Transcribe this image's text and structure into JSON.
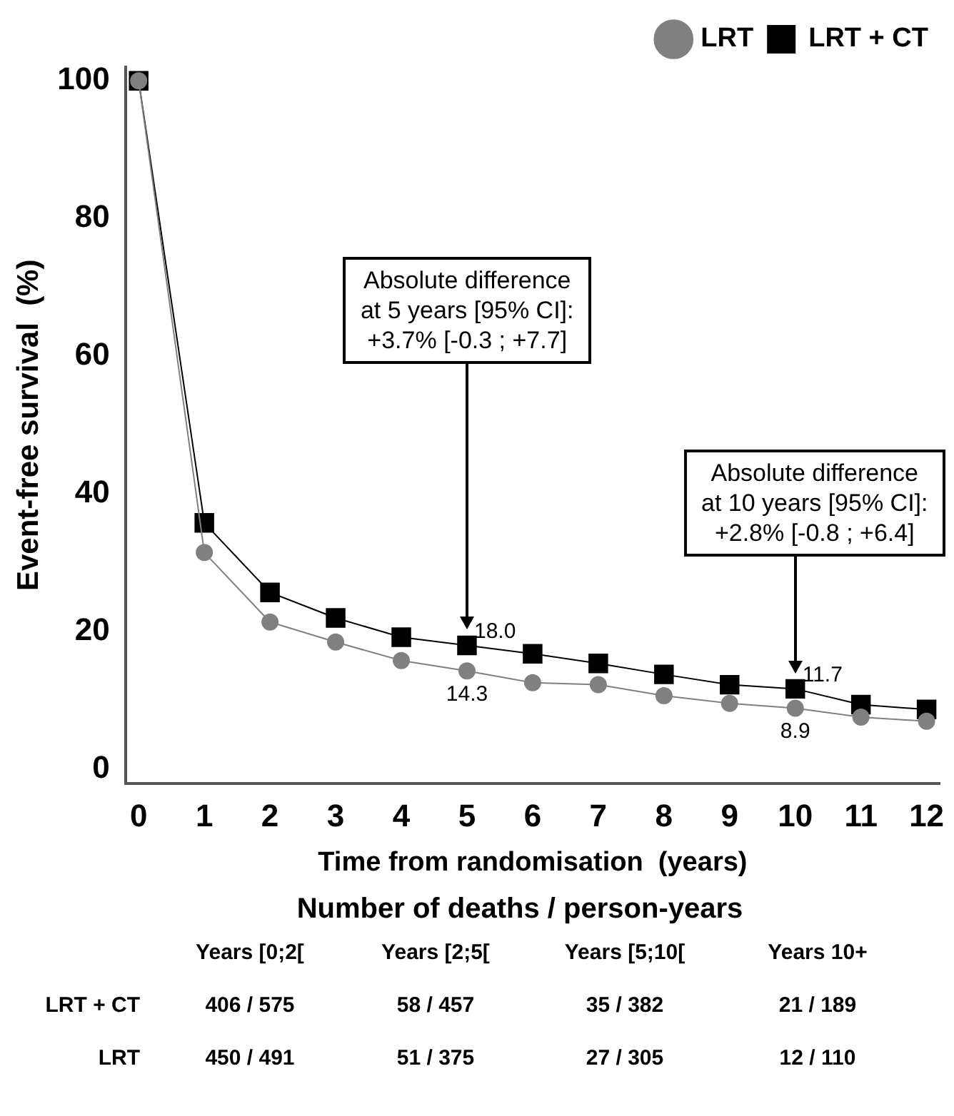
{
  "chart_data": {
    "type": "line",
    "xlabel": "Time from randomisation  (years)",
    "ylabel": "Event-free survival  (%)",
    "x": [
      0,
      1,
      2,
      3,
      4,
      5,
      6,
      7,
      8,
      9,
      10,
      11,
      12
    ],
    "series": [
      {
        "name": "LRT + CT",
        "color": "#000000",
        "marker": "square",
        "values": [
          100,
          35.8,
          25.7,
          22.0,
          19.2,
          18.0,
          16.8,
          15.4,
          13.8,
          12.3,
          11.7,
          9.4,
          8.7
        ],
        "value_labels": [
          null,
          null,
          null,
          null,
          null,
          "18.0",
          null,
          null,
          null,
          null,
          "11.7",
          null,
          null
        ]
      },
      {
        "name": "LRT",
        "color": "#808080",
        "marker": "circle",
        "values": [
          100,
          31.5,
          21.4,
          18.5,
          15.8,
          14.3,
          12.6,
          12.3,
          10.7,
          9.6,
          8.9,
          7.6,
          7.0
        ],
        "value_labels": [
          null,
          null,
          null,
          null,
          null,
          "14.3",
          null,
          null,
          null,
          null,
          "8.9",
          null,
          null
        ]
      }
    ],
    "xlim": [
      -0.2,
      12.2
    ],
    "xticks": [
      0,
      1,
      2,
      3,
      4,
      5,
      6,
      7,
      8,
      9,
      10,
      11,
      12
    ],
    "ylim": [
      -2,
      102
    ],
    "yticks": [
      0,
      20,
      40,
      60,
      80,
      100
    ],
    "legend": "top right",
    "grid": false,
    "line_style": "solid",
    "annotations": [
      "Absolute difference\nat 5 years [95% CI]:\n+3.7% [-0.3 ; +7.7]",
      "Absolute difference\nat 10 years [95% CI]:\n+2.8% [-0.8 ; +6.4]",
      "Number of deaths / person-years",
      "Years [0;2[",
      "Years [2;5[",
      "Years [5;10[",
      "Years 10+",
      "LRT + CT",
      "406 / 575",
      "58 / 457",
      "35 / 382",
      "21 / 189",
      "LRT",
      "450 / 491",
      "51 / 375",
      "27 / 305",
      "12 / 110"
    ]
  }
}
